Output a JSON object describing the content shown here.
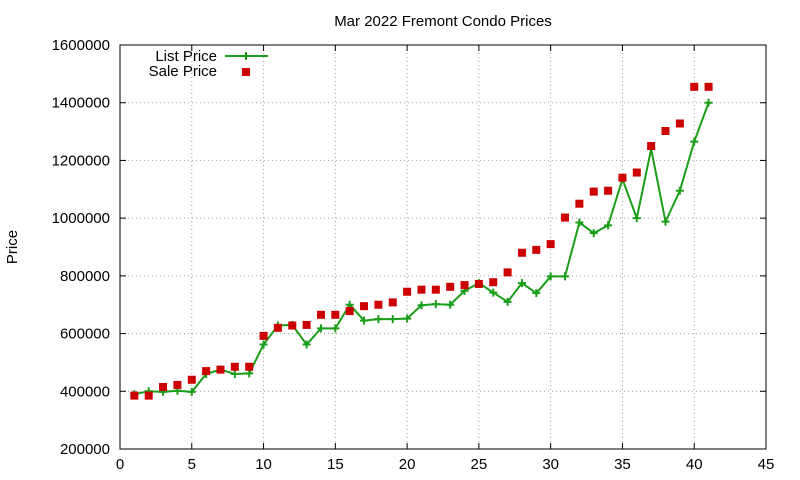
{
  "chart_data": {
    "type": "line",
    "title": "Mar 2022 Fremont Condo Prices",
    "xlabel": "",
    "ylabel": "Price",
    "xlim": [
      0,
      45
    ],
    "ylim": [
      200000,
      1600000
    ],
    "x_ticks": [
      "0",
      "5",
      "10",
      "15",
      "20",
      "25",
      "30",
      "35",
      "40",
      "45"
    ],
    "y_ticks": [
      "200000",
      "400000",
      "600000",
      "800000",
      "1000000",
      "1200000",
      "1400000",
      "1600000"
    ],
    "grid": true,
    "legend_position": "top-left",
    "series": [
      {
        "name": "List Price",
        "style": "linespoints",
        "color": "#1a9e1a",
        "x": [
          1,
          2,
          3,
          4,
          5,
          6,
          7,
          8,
          9,
          10,
          11,
          12,
          13,
          14,
          15,
          16,
          17,
          18,
          19,
          20,
          21,
          22,
          23,
          24,
          25,
          26,
          27,
          28,
          29,
          30,
          31,
          32,
          33,
          34,
          35,
          36,
          37,
          38,
          39,
          40,
          41
        ],
        "values": [
          390000,
          400000,
          398000,
          402000,
          398000,
          460000,
          475000,
          460000,
          462000,
          562000,
          628000,
          630000,
          562000,
          618000,
          618000,
          700000,
          645000,
          650000,
          650000,
          652000,
          698000,
          702000,
          700000,
          748000,
          775000,
          742000,
          710000,
          775000,
          740000,
          798000,
          798000,
          985000,
          948000,
          975000,
          1135000,
          1000000,
          1240000,
          988000,
          1095000,
          1265000,
          1400000
        ]
      },
      {
        "name": "Sale Price",
        "style": "points",
        "color": "#cc0000",
        "x": [
          1,
          2,
          3,
          4,
          5,
          6,
          7,
          8,
          9,
          10,
          11,
          12,
          13,
          14,
          15,
          16,
          17,
          18,
          19,
          20,
          21,
          22,
          23,
          24,
          25,
          26,
          27,
          28,
          29,
          30,
          31,
          32,
          33,
          34,
          35,
          36,
          37,
          38,
          39,
          40,
          41
        ],
        "values": [
          385000,
          385000,
          415000,
          422000,
          440000,
          470000,
          475000,
          485000,
          485000,
          592000,
          620000,
          628000,
          630000,
          665000,
          665000,
          678000,
          695000,
          700000,
          708000,
          745000,
          752000,
          752000,
          762000,
          768000,
          772000,
          778000,
          812000,
          880000,
          890000,
          910000,
          1002000,
          1050000,
          1092000,
          1095000,
          1140000,
          1158000,
          1250000,
          1302000,
          1328000,
          1455000,
          1455000
        ]
      }
    ]
  }
}
